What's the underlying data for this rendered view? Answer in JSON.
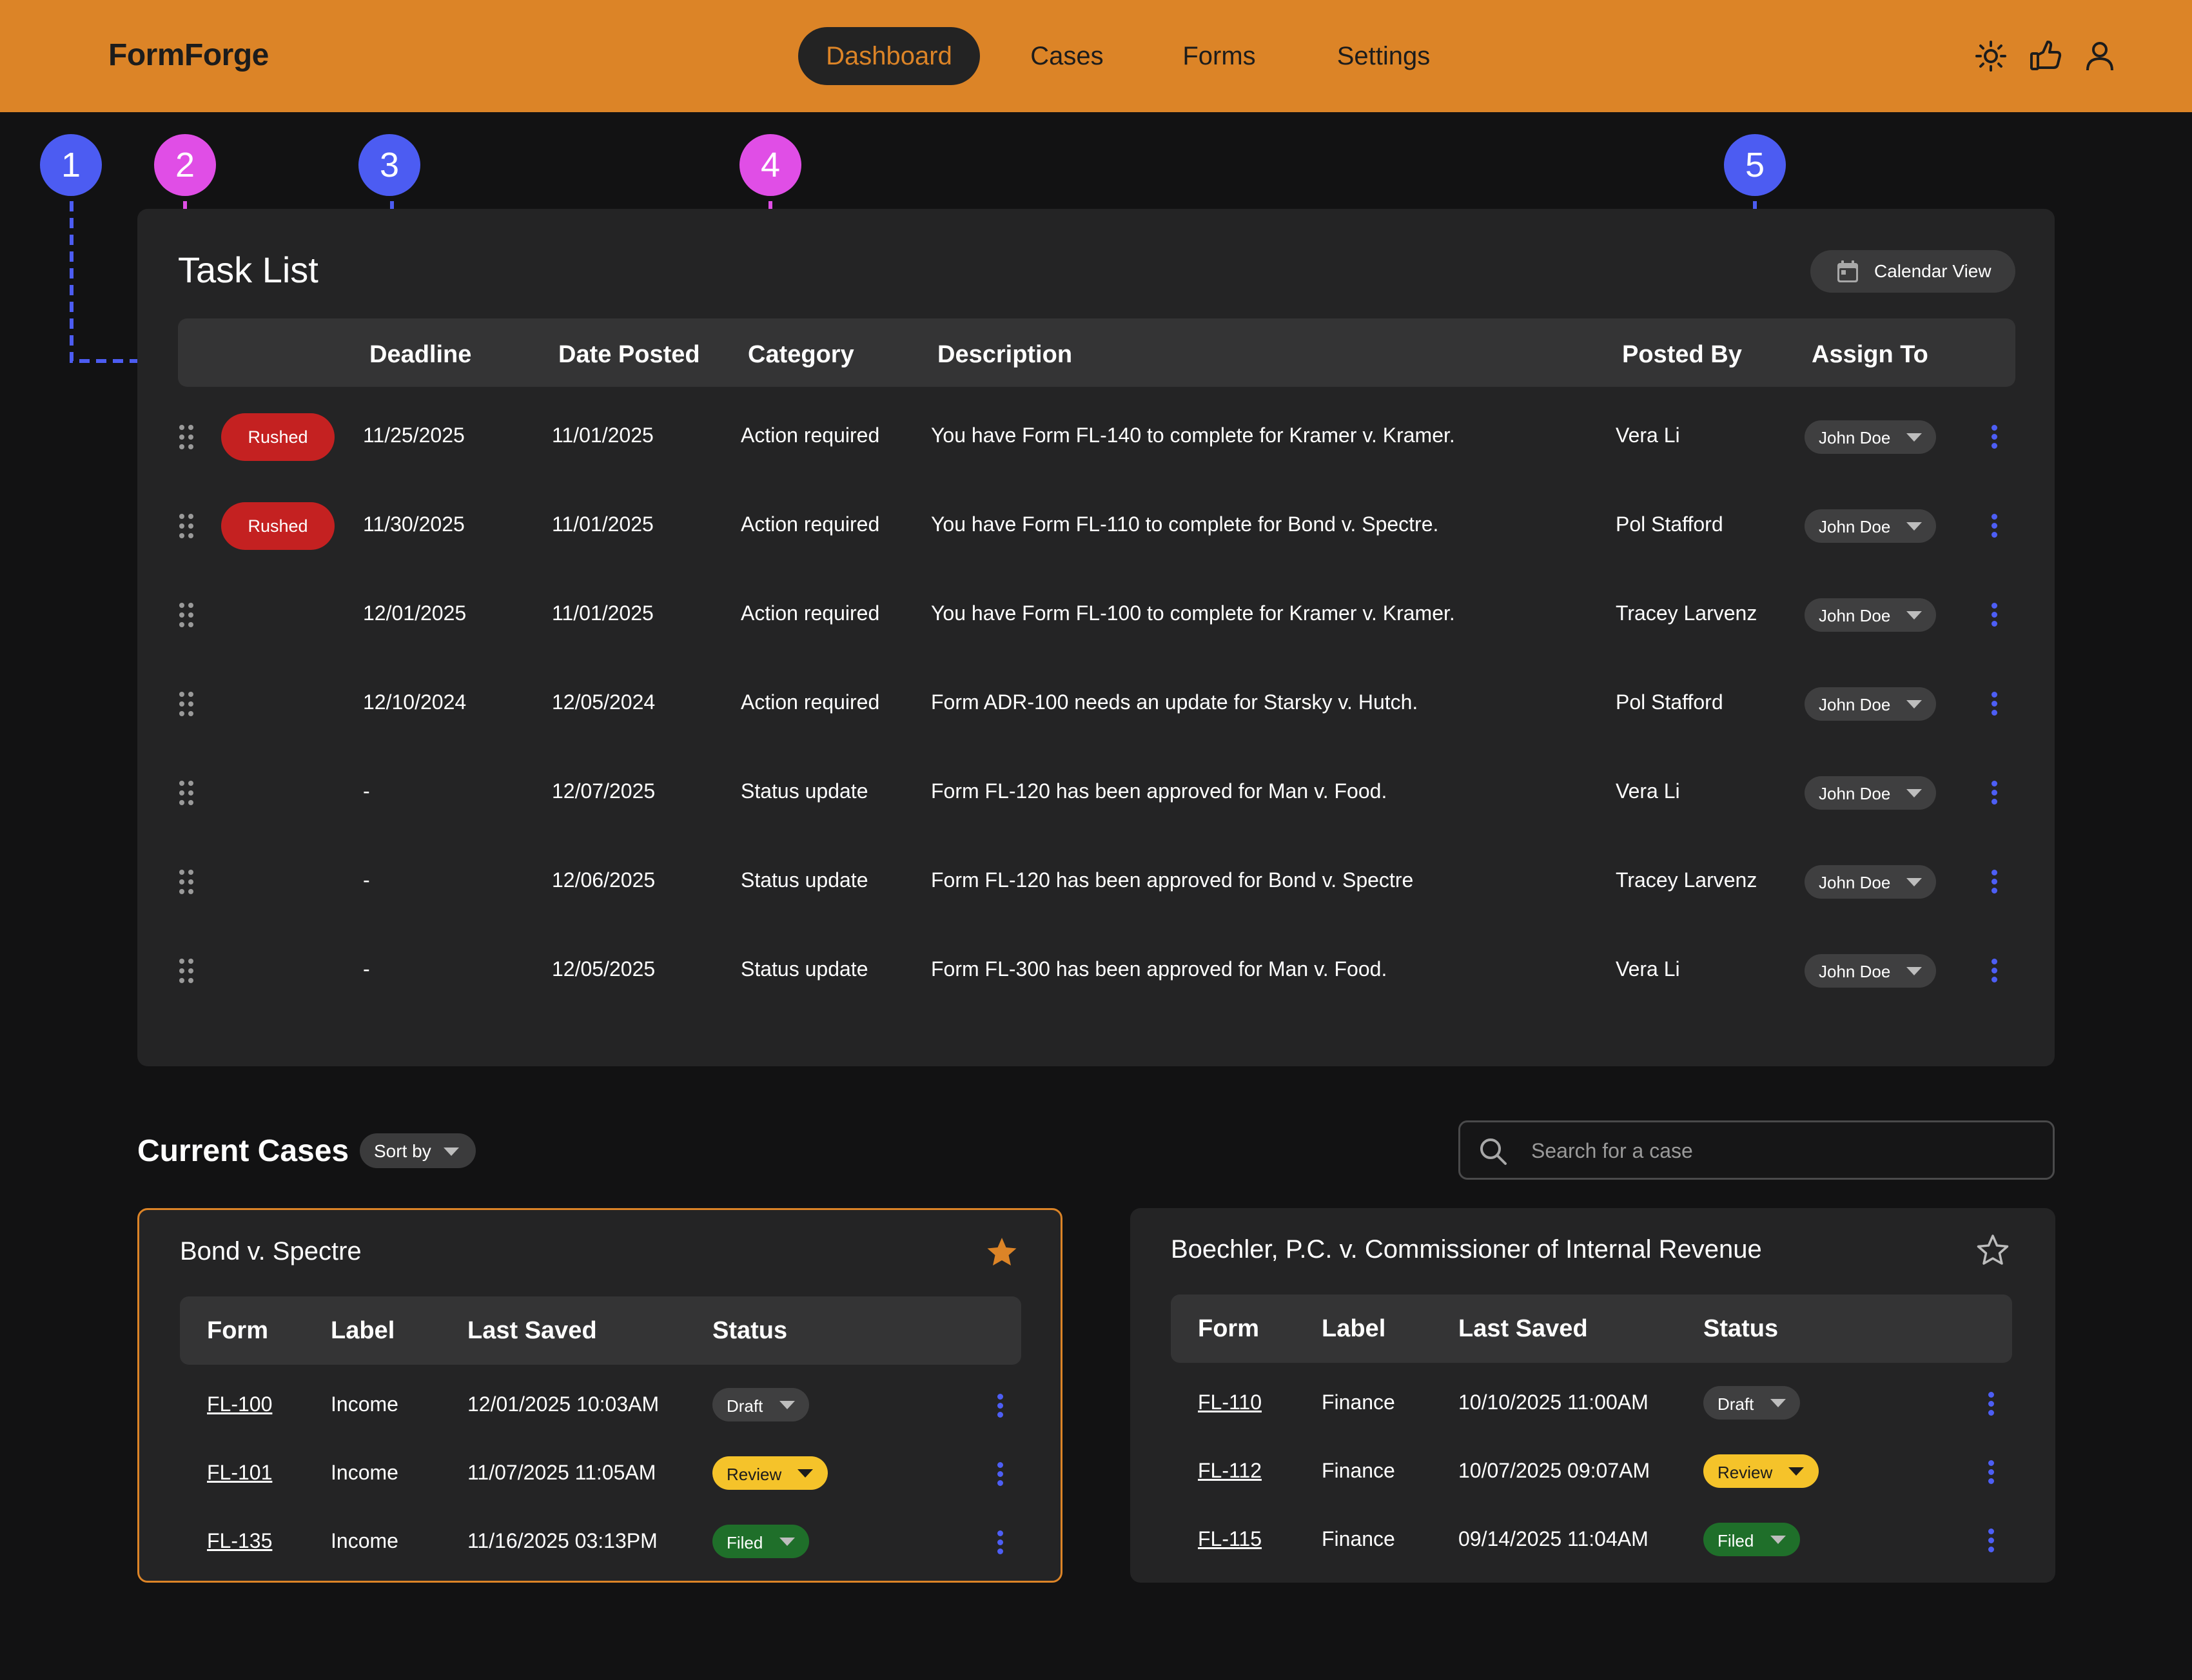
{
  "app": {
    "name": "FormForge"
  },
  "nav": [
    "Dashboard",
    "Cases",
    "Forms",
    "Settings"
  ],
  "nav_active": "Dashboard",
  "header_icons": [
    "sun-icon",
    "thumbs-up-icon",
    "user-icon"
  ],
  "colors": {
    "header": "#dc8427",
    "background": "#121213",
    "card": "#242425",
    "accent": "#dc8427",
    "marker_blue": "#4c5cf2",
    "marker_pink": "#e04ee6",
    "rushed": "#c42121",
    "review": "#f5c32a",
    "filed": "#1f6f2a",
    "kebab": "#4d5ef5"
  },
  "annotations": [
    "1",
    "2",
    "3",
    "4",
    "5"
  ],
  "task_list": {
    "title": "Task List",
    "calendar_button": "Calendar View",
    "columns": [
      "Deadline",
      "Date Posted",
      "Category",
      "Description",
      "Posted By",
      "Assign To"
    ],
    "rows": [
      {
        "badge": "Rushed",
        "deadline": "11/25/2025",
        "posted": "11/01/2025",
        "category": "Action required",
        "description": "You have Form FL-140 to complete for Kramer v. Kramer.",
        "posted_by": "Vera Li",
        "assign_to": "John Doe"
      },
      {
        "badge": "Rushed",
        "deadline": "11/30/2025",
        "posted": "11/01/2025",
        "category": "Action required",
        "description": "You have Form FL-110 to complete for Bond v. Spectre.",
        "posted_by": "Pol Stafford",
        "assign_to": "John Doe"
      },
      {
        "badge": "",
        "deadline": "12/01/2025",
        "posted": "11/01/2025",
        "category": "Action required",
        "description": "You have Form FL-100 to complete for Kramer v. Kramer.",
        "posted_by": "Tracey Larvenz",
        "assign_to": "John Doe"
      },
      {
        "badge": "",
        "deadline": "12/10/2024",
        "posted": "12/05/2024",
        "category": "Action required",
        "description": "Form ADR-100 needs an update for Starsky v. Hutch.",
        "posted_by": "Pol Stafford",
        "assign_to": "John Doe"
      },
      {
        "badge": "",
        "deadline": "-",
        "posted": "12/07/2025",
        "category": "Status update",
        "description": "Form FL-120 has been approved for Man v. Food.",
        "posted_by": "Vera Li",
        "assign_to": "John Doe"
      },
      {
        "badge": "",
        "deadline": "-",
        "posted": "12/06/2025",
        "category": "Status update",
        "description": "Form FL-120 has been approved for Bond v. Spectre",
        "posted_by": "Tracey Larvenz",
        "assign_to": "John Doe"
      },
      {
        "badge": "",
        "deadline": "-",
        "posted": "12/05/2025",
        "category": "Status update",
        "description": "Form FL-300 has been approved for Man v. Food.",
        "posted_by": "Vera Li",
        "assign_to": "John Doe"
      }
    ]
  },
  "current_cases": {
    "title": "Current Cases",
    "sort_label": "Sort by",
    "search_placeholder": "Search for a case",
    "columns": [
      "Form",
      "Label",
      "Last Saved",
      "Status"
    ],
    "cases": [
      {
        "name": "Bond v. Spectre",
        "starred": true,
        "rows": [
          {
            "form": "FL-100",
            "label": "Income",
            "last_saved": "12/01/2025 10:03AM",
            "status": "Draft"
          },
          {
            "form": "FL-101",
            "label": "Income",
            "last_saved": "11/07/2025 11:05AM",
            "status": "Review"
          },
          {
            "form": "FL-135",
            "label": "Income",
            "last_saved": "11/16/2025 03:13PM",
            "status": "Filed"
          }
        ]
      },
      {
        "name": "Boechler, P.C. v. Commissioner of Internal Revenue",
        "starred": false,
        "rows": [
          {
            "form": "FL-110",
            "label": "Finance",
            "last_saved": "10/10/2025 11:00AM",
            "status": "Draft"
          },
          {
            "form": "FL-112",
            "label": "Finance",
            "last_saved": "10/07/2025 09:07AM",
            "status": "Review"
          },
          {
            "form": "FL-115",
            "label": "Finance",
            "last_saved": "09/14/2025 11:04AM",
            "status": "Filed"
          }
        ]
      }
    ]
  }
}
